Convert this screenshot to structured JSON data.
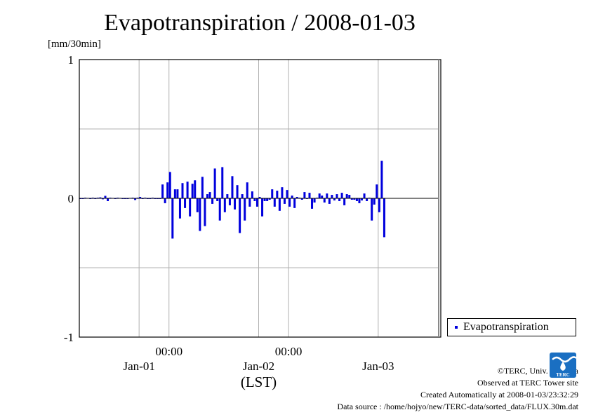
{
  "title": "Evapotranspiration / 2008-01-03",
  "y_unit": "[mm/30min]",
  "x_unit": "(LST)",
  "legend": {
    "label": "Evapotranspiration",
    "color": "#0000dd"
  },
  "credits": {
    "copyright": "©TERC, Univ. Tsukuba",
    "site": "Observed at TERC Tower site",
    "created": "Created Automatically at 2008-01-03/23:32:29",
    "source": "Data source : /home/hojyo/new/TERC-data/sorted_data/FLUX.30m.dat",
    "logo_text": "TERC"
  },
  "colors": {
    "bar": "#0000dd",
    "grid": "#b0b0b0",
    "zero_line": "#000000"
  },
  "chart_data": {
    "type": "bar",
    "title": "Evapotranspiration / 2008-01-03",
    "ylabel": "[mm/30min]",
    "xlabel": "(LST)",
    "ylim": [
      -1,
      1
    ],
    "yticks": [
      {
        "value": 1,
        "label": "1"
      },
      {
        "value": 0,
        "label": "0"
      },
      {
        "value": -1,
        "label": "-1"
      }
    ],
    "xlim": [
      "2008-01-01T06:00",
      "2008-01-04T06:00"
    ],
    "time_ticks": [
      {
        "t": "2008-01-02T00:00",
        "label": "00:00"
      },
      {
        "t": "2008-01-03T00:00",
        "label": "00:00"
      }
    ],
    "date_labels": [
      {
        "t": "2008-01-01T18:00",
        "label": "Jan-01"
      },
      {
        "t": "2008-01-02T18:00",
        "label": "Jan-02"
      },
      {
        "t": "2008-01-03T18:00",
        "label": "Jan-03"
      }
    ],
    "grid": true,
    "legend_position": "outside-right-bottom",
    "series": [
      {
        "name": "Evapotranspiration",
        "color": "#0000dd",
        "start": "2008-01-01T06:00",
        "step_minutes": 30,
        "values": [
          -0.005,
          -0.005,
          0.005,
          0.003,
          -0.005,
          0.005,
          -0.005,
          0.005,
          0.007,
          -0.007,
          0.018,
          -0.02,
          0.005,
          0.003,
          -0.003,
          0.005,
          0.003,
          -0.005,
          0,
          -0.005,
          0.003,
          0.005,
          -0.012,
          0.005,
          0.01,
          0,
          0.005,
          -0.005,
          -0.005,
          0.005,
          0,
          0,
          0,
          0.1,
          -0.035,
          0.115,
          0.19,
          -0.29,
          0.065,
          0.065,
          -0.145,
          0.11,
          -0.07,
          0.12,
          -0.13,
          0.105,
          0.13,
          -0.1,
          -0.235,
          0.155,
          -0.2,
          0.03,
          0.045,
          -0.04,
          0.215,
          -0.02,
          -0.16,
          0.225,
          -0.1,
          0.03,
          -0.05,
          0.16,
          -0.08,
          0.095,
          -0.25,
          0.03,
          -0.16,
          0.115,
          -0.06,
          0.05,
          -0.02,
          -0.06,
          0.01,
          -0.13,
          -0.02,
          -0.02,
          -0.01,
          0.065,
          -0.06,
          0.055,
          -0.09,
          0.08,
          -0.04,
          0.06,
          -0.06,
          0.02,
          -0.07,
          0.01,
          0.005,
          -0.01,
          0.045,
          -0.005,
          0.04,
          -0.075,
          -0.03,
          0.005,
          0.035,
          0.02,
          -0.03,
          0.035,
          -0.04,
          0.025,
          -0.015,
          0.03,
          -0.02,
          0.04,
          -0.05,
          0.03,
          0.025,
          -0.01,
          -0.01,
          -0.02,
          -0.035,
          -0.015,
          0.035,
          -0.02,
          0.005,
          -0.16,
          -0.045,
          0.1,
          -0.1,
          0.27,
          -0.28
        ]
      }
    ]
  }
}
